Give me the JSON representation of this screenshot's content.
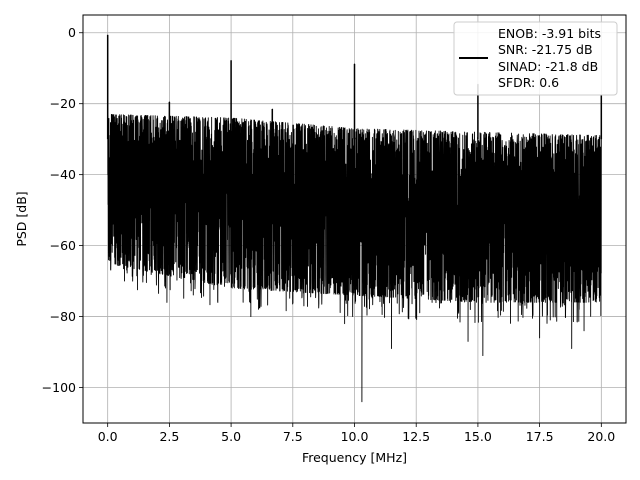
{
  "chart_data": {
    "type": "line",
    "xlabel": "Frequency [MHz]",
    "ylabel": "PSD [dB]",
    "xlim": [
      -1.0,
      21.0
    ],
    "ylim": [
      -110,
      5
    ],
    "xticks": [
      0.0,
      2.5,
      5.0,
      7.5,
      10.0,
      12.5,
      15.0,
      17.5,
      20.0
    ],
    "xtick_labels": [
      "0.0",
      "2.5",
      "5.0",
      "7.5",
      "10.0",
      "12.5",
      "15.0",
      "17.5",
      "20.0"
    ],
    "yticks": [
      0,
      -20,
      -40,
      -60,
      -80,
      -100
    ],
    "ytick_labels": [
      "0",
      "−20",
      "−40",
      "−60",
      "−80",
      "−100"
    ],
    "grid": true,
    "legend_position": "top-right",
    "legend_lines": [
      "ENOB: -3.91 bits",
      "SNR: -21.75 dB",
      "SINAD: -21.8 dB",
      "SFDR: 0.6"
    ],
    "series": [
      {
        "color": "#000000",
        "noise_floor_upper": [
          [
            0.0,
            -23
          ],
          [
            5.0,
            -24
          ],
          [
            10.0,
            -27
          ],
          [
            15.0,
            -28
          ],
          [
            20.0,
            -29
          ]
        ],
        "noise_floor_lower": [
          [
            0.0,
            -65
          ],
          [
            5.0,
            -72
          ],
          [
            10.0,
            -74
          ],
          [
            15.0,
            -76
          ],
          [
            20.0,
            -76
          ]
        ],
        "spurs": [
          {
            "x": 0.0,
            "y": -0.6
          },
          {
            "x": 2.5,
            "y": -19.5
          },
          {
            "x": 5.0,
            "y": -7.8
          },
          {
            "x": 6.67,
            "y": -21.5
          },
          {
            "x": 10.0,
            "y": -8.8
          },
          {
            "x": 15.0,
            "y": -14.5
          },
          {
            "x": 20.0,
            "y": -17.5
          }
        ],
        "deep_nulls": [
          {
            "x": 2.4,
            "y": -76
          },
          {
            "x": 5.8,
            "y": -80
          },
          {
            "x": 9.6,
            "y": -82
          },
          {
            "x": 10.3,
            "y": -104
          },
          {
            "x": 11.5,
            "y": -89
          },
          {
            "x": 14.6,
            "y": -87
          },
          {
            "x": 15.2,
            "y": -91
          },
          {
            "x": 17.5,
            "y": -86
          },
          {
            "x": 18.8,
            "y": -89
          },
          {
            "x": 19.3,
            "y": -84
          }
        ]
      }
    ]
  }
}
